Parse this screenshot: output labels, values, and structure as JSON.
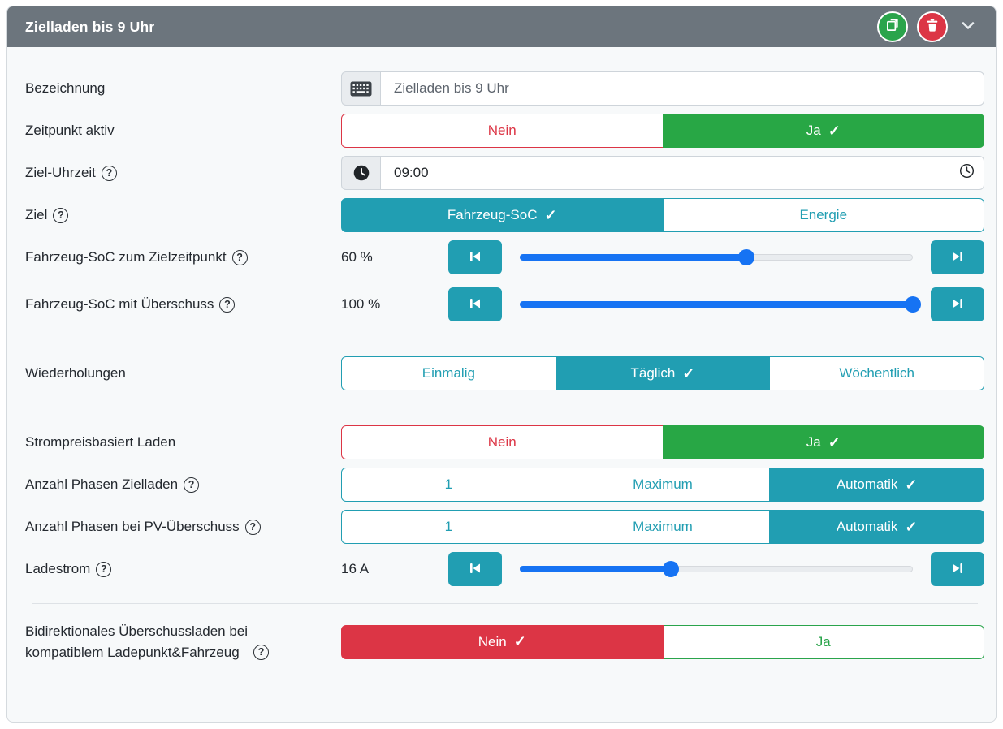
{
  "header": {
    "title": "Zielladen bis 9 Uhr"
  },
  "icons": {
    "check": "✓",
    "help": "?",
    "keyboard": "⌨",
    "clock": "🕐",
    "copy": "⧉",
    "trash": "🗑",
    "chevron_down": "⌄",
    "skip_backward": "⏮",
    "skip_forward": "⏭"
  },
  "colors": {
    "header_gray": "#6c757d",
    "accent_teal": "#219eb2",
    "success_green": "#28a745",
    "danger_red": "#dc3545",
    "slider_blue": "#1673f3"
  },
  "rows": {
    "bezeichnung": {
      "label": "Bezeichnung",
      "value": "Zielladen bis 9 Uhr"
    },
    "zeitpunkt_aktiv": {
      "label": "Zeitpunkt aktiv",
      "option_no": "Nein",
      "option_yes": "Ja",
      "selected": "Ja"
    },
    "ziel_uhrzeit": {
      "label": "Ziel-Uhrzeit",
      "value": "09:00"
    },
    "ziel": {
      "label": "Ziel",
      "option_soc": "Fahrzeug-SoC",
      "option_energy": "Energie",
      "selected": "Fahrzeug-SoC"
    },
    "soc_zielzeitpunkt": {
      "label": "Fahrzeug-SoC zum Zielzeitpunkt",
      "value": "60 %",
      "percent": 57.7
    },
    "soc_ueberschuss": {
      "label": "Fahrzeug-SoC mit Überschuss",
      "value": "100 %",
      "percent": 100
    },
    "wiederholungen": {
      "label": "Wiederholungen",
      "options": [
        "Einmalig",
        "Täglich",
        "Wöchentlich"
      ],
      "selected": "Täglich"
    },
    "strompreisbasiert": {
      "label": "Strompreisbasiert Laden",
      "option_no": "Nein",
      "option_yes": "Ja",
      "selected": "Ja"
    },
    "phasen_zielladen": {
      "label": "Anzahl Phasen Zielladen",
      "options": [
        "1",
        "Maximum",
        "Automatik"
      ],
      "selected": "Automatik"
    },
    "phasen_pv": {
      "label": "Anzahl Phasen bei PV-Überschuss",
      "options": [
        "1",
        "Maximum",
        "Automatik"
      ],
      "selected": "Automatik"
    },
    "ladestrom": {
      "label": "Ladestrom",
      "value": "16 A",
      "percent": 38.5
    },
    "bidirektional": {
      "label": "Bidirektionales Überschussladen bei\nkompatiblem Ladepunkt&Fahrzeug",
      "option_no": "Nein",
      "option_yes": "Ja",
      "selected": "Nein"
    }
  }
}
